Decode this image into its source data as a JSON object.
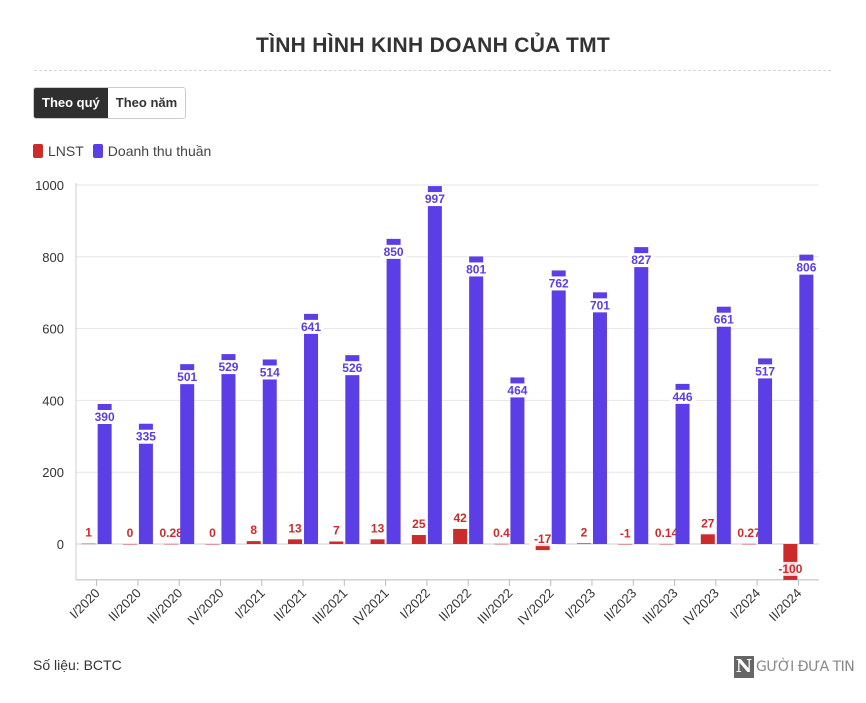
{
  "title": "TÌNH HÌNH KINH DOANH CỦA TMT",
  "tabs": [
    {
      "label": "Theo quý",
      "active": true
    },
    {
      "label": "Theo năm",
      "active": false
    }
  ],
  "source": "Số liệu: BCTC",
  "logo": {
    "letter": "N",
    "text": "GƯỜI ĐƯA TIN"
  },
  "colors": {
    "lnst": "#cc2b2b",
    "revenue": "#5b3ee6"
  },
  "chart_data": {
    "type": "bar",
    "categories": [
      "I/2020",
      "II/2020",
      "III/2020",
      "IV/2020",
      "I/2021",
      "II/2021",
      "III/2021",
      "IV/2021",
      "I/2022",
      "II/2022",
      "III/2022",
      "IV/2022",
      "I/2023",
      "II/2023",
      "III/2023",
      "IV/2023",
      "I/2024",
      "II/2024"
    ],
    "series": [
      {
        "name": "LNST",
        "color": "#cc2b2b",
        "values": [
          1,
          0,
          0.28,
          0,
          8,
          13,
          7,
          13,
          25,
          42,
          0.4,
          -17,
          2,
          -1,
          0.14,
          27,
          0.27,
          -100
        ]
      },
      {
        "name": "Doanh thu thuần",
        "color": "#5b3ee6",
        "values": [
          390,
          335,
          501,
          529,
          514,
          641,
          526,
          850,
          997,
          801,
          464,
          762,
          701,
          827,
          446,
          661,
          517,
          806
        ]
      }
    ],
    "ylim": [
      -100,
      1000
    ],
    "yticks": [
      0,
      200,
      400,
      600,
      800,
      1000
    ],
    "grid": true,
    "legend_position": "top-left"
  }
}
